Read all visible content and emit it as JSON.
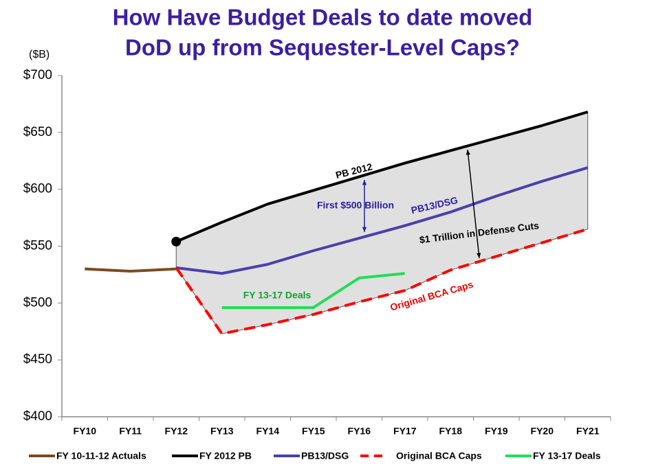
{
  "chart_data": {
    "type": "line",
    "title": [
      "How Have Budget Deals to date moved",
      "DoD up from Sequester-Level Caps?"
    ],
    "y_axis_label": "($B)",
    "categories": [
      "FY10",
      "FY11",
      "FY12",
      "FY13",
      "FY14",
      "FY15",
      "FY16",
      "FY17",
      "FY18",
      "FY19",
      "FY20",
      "FY21"
    ],
    "ylim": [
      400,
      700
    ],
    "yticks": [
      {
        "value": 400,
        "label": "$400"
      },
      {
        "value": 450,
        "label": "$450"
      },
      {
        "value": 500,
        "label": "$500"
      },
      {
        "value": 550,
        "label": "$550"
      },
      {
        "value": 600,
        "label": "$600"
      },
      {
        "value": 650,
        "label": "$650"
      },
      {
        "value": 700,
        "label": "$700"
      }
    ],
    "series": [
      {
        "name": "FY 10-11-12 Actuals",
        "color": "#7b4a1e",
        "values": [
          530,
          528,
          530,
          null,
          null,
          null,
          null,
          null,
          null,
          null,
          null,
          null
        ]
      },
      {
        "name": "FY 2012 PB",
        "color": "#000000",
        "values": [
          null,
          null,
          554,
          571,
          587,
          599,
          611,
          623,
          634,
          645,
          656,
          668
        ]
      },
      {
        "name": "PB13/DSG",
        "color": "#4b3fae",
        "values": [
          null,
          null,
          531,
          526,
          534,
          546,
          557,
          568,
          580,
          594,
          607,
          619
        ]
      },
      {
        "name": "Original BCA Caps",
        "color": "#ff0000",
        "dashed": true,
        "values": [
          null,
          null,
          531,
          473,
          481,
          490,
          501,
          511,
          529,
          541,
          553,
          565
        ]
      },
      {
        "name": "FY 13-17 Deals",
        "color": "#22dd55",
        "values": [
          null,
          null,
          null,
          496,
          496,
          496,
          522,
          526,
          null,
          null,
          null,
          null
        ]
      }
    ],
    "annotations": [
      {
        "text": "PB 2012",
        "color": "#000000"
      },
      {
        "text": "First $500 Billion",
        "color": "#2a1f9e"
      },
      {
        "text": "PB13/DSG",
        "color": "#2a1f9e"
      },
      {
        "text": "$1 Trillion in Defense Cuts",
        "color": "#000000"
      },
      {
        "text": "FY 13-17 Deals",
        "color": "#11a030"
      },
      {
        "text": "Original BCA Caps",
        "color": "#ee0000"
      }
    ]
  }
}
